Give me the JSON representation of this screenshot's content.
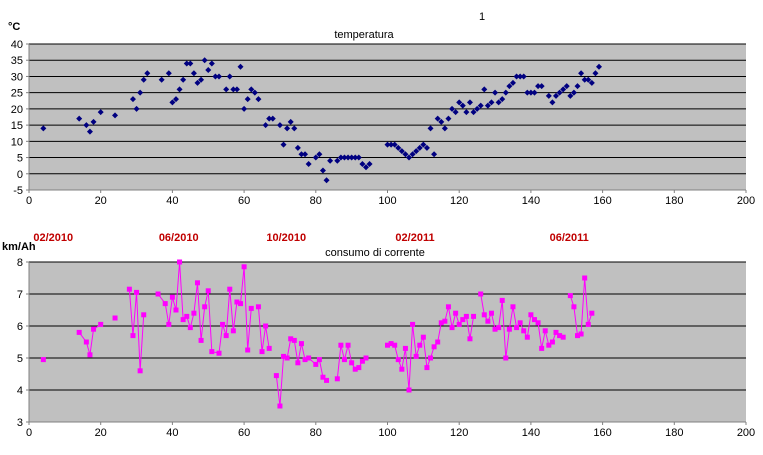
{
  "stray_mark": "1",
  "dates": [
    "02/2010",
    "06/2010",
    "10/2010",
    "02/2011",
    "06/2011"
  ],
  "date_positions_x": [
    4,
    39,
    69,
    105,
    148
  ],
  "chart_data": [
    {
      "type": "scatter",
      "title": "temperatura",
      "ylabel": "°C",
      "xlim": [
        0,
        200
      ],
      "ylim": [
        -5,
        40
      ],
      "x_ticks": [
        0,
        20,
        40,
        60,
        80,
        100,
        120,
        140,
        160,
        180,
        200
      ],
      "y_ticks": [
        -5,
        0,
        5,
        10,
        15,
        20,
        25,
        30,
        35,
        40
      ],
      "grid": "horizontal",
      "colors": {
        "plot_bg": "#c0c0c0",
        "marker": "#000080",
        "grid": "#000000"
      },
      "series": [
        {
          "x": [
            4,
            14,
            16,
            17,
            18,
            20,
            24,
            29,
            30,
            31,
            32,
            33,
            37,
            39,
            40,
            41,
            42,
            43,
            44,
            45,
            46,
            47,
            48,
            49,
            50,
            51,
            52,
            53,
            55,
            56,
            57,
            58,
            59,
            60,
            61,
            62,
            63,
            64,
            66,
            67,
            68,
            70,
            71,
            72,
            73,
            74,
            75,
            76,
            77,
            78,
            80,
            81,
            82,
            83,
            84,
            86,
            87,
            88,
            89,
            90,
            91,
            92,
            93,
            94,
            95,
            100,
            101,
            102,
            103,
            104,
            105,
            106,
            107,
            108,
            109,
            110,
            111,
            112,
            113,
            114,
            115,
            116,
            117,
            118,
            119,
            120,
            121,
            122,
            123,
            124,
            125,
            126,
            127,
            128,
            129,
            130,
            131,
            132,
            133,
            134,
            135,
            136,
            137,
            138,
            139,
            140,
            141,
            142,
            143,
            145,
            146,
            147,
            148,
            149,
            150,
            151,
            152,
            153,
            154,
            155,
            156,
            157,
            158,
            159
          ],
          "y": [
            14,
            17,
            15,
            13,
            16,
            19,
            18,
            23,
            20,
            25,
            29,
            31,
            29,
            31,
            22,
            23,
            26,
            29,
            34,
            34,
            31,
            28,
            29,
            35,
            32,
            34,
            30,
            30,
            26,
            30,
            26,
            26,
            33,
            20,
            23,
            26,
            25,
            23,
            15,
            17,
            17,
            15,
            9,
            14,
            16,
            14,
            8,
            6,
            6,
            3,
            5,
            6,
            1,
            -2,
            4,
            4,
            5,
            5,
            5,
            5,
            5,
            5,
            3,
            2,
            3,
            9,
            9,
            9,
            8,
            7,
            6,
            5,
            6,
            7,
            8,
            9,
            8,
            14,
            6,
            17,
            16,
            14,
            17,
            20,
            19,
            22,
            21,
            19,
            22,
            19,
            20,
            21,
            26,
            21,
            22,
            25,
            22,
            23,
            25,
            27,
            28,
            30,
            30,
            30,
            25,
            25,
            25,
            27,
            27,
            24,
            22,
            24,
            25,
            26,
            27,
            24,
            25,
            27,
            31,
            29,
            29,
            28,
            31,
            33
          ]
        }
      ]
    },
    {
      "type": "line",
      "title": "consumo di corrente",
      "ylabel": "km/Ah",
      "xlim": [
        0,
        200
      ],
      "ylim": [
        3,
        8
      ],
      "x_ticks": [
        0,
        20,
        40,
        60,
        80,
        100,
        120,
        140,
        160,
        180,
        200
      ],
      "y_ticks": [
        3,
        4,
        5,
        6,
        7,
        8
      ],
      "grid": "horizontal",
      "colors": {
        "plot_bg": "#c0c0c0",
        "marker": "#ff00ff",
        "grid": "#000000"
      },
      "series": [
        {
          "segments": [
            {
              "x": [
                4
              ],
              "y": [
                4.95
              ]
            },
            {
              "x": [
                14,
                16,
                17,
                18,
                20
              ],
              "y": [
                5.8,
                5.5,
                5.1,
                5.9,
                6.05
              ]
            },
            {
              "x": [
                24
              ],
              "y": [
                6.25
              ]
            },
            {
              "x": [
                28,
                29,
                30,
                31,
                32
              ],
              "y": [
                7.15,
                5.7,
                7.05,
                4.6,
                6.35
              ]
            },
            {
              "x": [
                36,
                38,
                39,
                40,
                41,
                42,
                43,
                44,
                45,
                46,
                47,
                48,
                49,
                50,
                51,
                53,
                54,
                55,
                56,
                57,
                58,
                59,
                60,
                61,
                62
              ],
              "y": [
                7.0,
                6.7,
                6.05,
                6.9,
                6.5,
                8.0,
                6.2,
                6.3,
                5.95,
                6.4,
                7.35,
                5.55,
                6.6,
                7.1,
                5.2,
                5.15,
                6.05,
                5.7,
                7.15,
                5.85,
                6.75,
                6.7,
                7.85,
                5.25,
                6.55
              ]
            },
            {
              "x": [
                64,
                65,
                66,
                67
              ],
              "y": [
                6.6,
                5.2,
                6.0,
                5.3
              ]
            },
            {
              "x": [
                69,
                70,
                71,
                72,
                73,
                74,
                75,
                76,
                77,
                78,
                80,
                81,
                82,
                83
              ],
              "y": [
                4.45,
                3.5,
                5.05,
                5.0,
                5.6,
                5.55,
                4.85,
                5.45,
                4.95,
                5.0,
                4.8,
                4.95,
                4.4,
                4.3
              ]
            },
            {
              "x": [
                86,
                87,
                88,
                89,
                90,
                91,
                92,
                93,
                94
              ],
              "y": [
                4.35,
                5.4,
                4.95,
                5.4,
                4.85,
                4.65,
                4.7,
                4.9,
                5.0
              ]
            },
            {
              "x": [
                100,
                101,
                102,
                103,
                104,
                105,
                106,
                107,
                108,
                109,
                110,
                111,
                112,
                113,
                114,
                115,
                116,
                117,
                118,
                119,
                120,
                121,
                122,
                123,
                124
              ],
              "y": [
                5.4,
                5.45,
                5.4,
                4.95,
                4.65,
                5.3,
                4.0,
                6.05,
                5.05,
                5.4,
                5.65,
                4.7,
                5.0,
                5.35,
                5.5,
                6.1,
                6.15,
                6.6,
                5.95,
                6.4,
                6.05,
                6.2,
                6.3,
                5.6,
                6.3
              ]
            },
            {
              "x": [
                126,
                127,
                128,
                129,
                130,
                131,
                132,
                133,
                134,
                135,
                136,
                137,
                138,
                139,
                140,
                141,
                142,
                143,
                144,
                145,
                146,
                147,
                148,
                149
              ],
              "y": [
                7.0,
                6.35,
                6.15,
                6.4,
                5.9,
                5.95,
                6.8,
                5.0,
                5.9,
                6.6,
                5.95,
                6.1,
                5.85,
                5.65,
                6.35,
                6.2,
                6.1,
                5.3,
                5.85,
                5.4,
                5.5,
                5.8,
                5.7,
                5.65
              ]
            },
            {
              "x": [
                151,
                152,
                153,
                154,
                155,
                156,
                157
              ],
              "y": [
                6.95,
                6.6,
                5.7,
                5.75,
                7.5,
                6.05,
                6.4
              ]
            }
          ]
        }
      ]
    }
  ]
}
